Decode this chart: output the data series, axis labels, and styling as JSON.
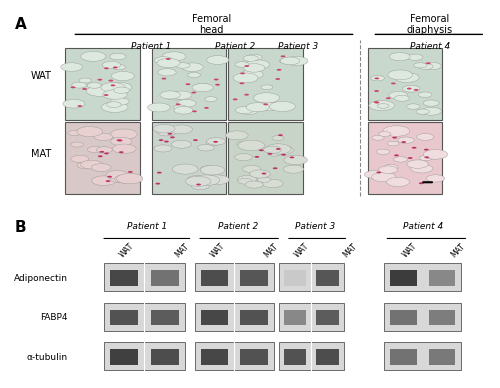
{
  "fig_width": 5.0,
  "fig_height": 3.88,
  "dpi": 100,
  "bg_color": "#ffffff",
  "panel_A_label": "A",
  "panel_B_label": "B",
  "femoral_head_label": "Femoral\nhead",
  "femoral_diaphysis_label": "Femoral\ndiaphysis",
  "patient_labels": [
    "Patient 1",
    "Patient 2",
    "Patient 3",
    "Patient 4"
  ],
  "row_labels_A": [
    "WAT",
    "MAT"
  ],
  "patient_labels_B": [
    "Patient 1",
    "Patient 2",
    "Patient 3",
    "Patient 4"
  ],
  "lane_labels_B": [
    "WAT",
    "MAT"
  ],
  "protein_labels": [
    "Adiponectin",
    "FABP4",
    "α-tubulin"
  ],
  "text_color": "#000000",
  "line_color": "#000000",
  "box_bg": "#e8e8e8",
  "box_border": "#555555",
  "wat_color_light": "#d8e8d8",
  "mat_color_dark": "#e8d0d8",
  "band_dark": "#404040",
  "band_mid": "#888888",
  "band_light": "#cccccc",
  "separator_line_color": "#aaaaaa",
  "panel_sep_color": "#bbbbbb"
}
